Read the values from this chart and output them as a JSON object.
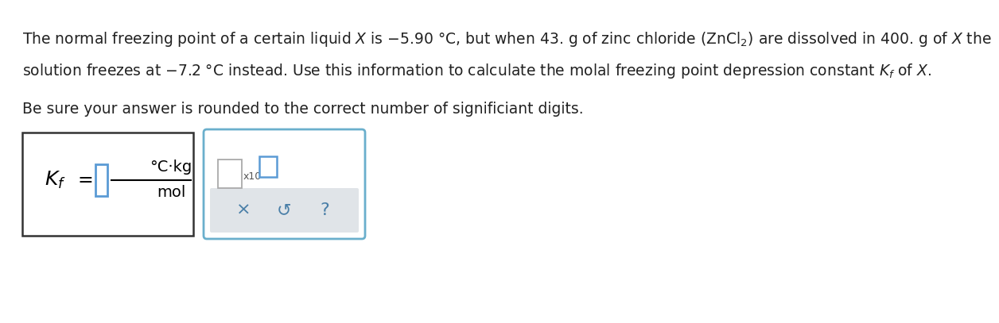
{
  "background_color": "#ffffff",
  "text_line1": "The normal freezing point of a certain liquid $X$ is $-$5.90 °C, but when 43. g of zinc chloride (ZnCl$_2$) are dissolved in 400. g of $X$ the",
  "text_line2": "solution freezes at $-$7.2 °C instead. Use this information to calculate the molal freezing point depression constant $K_f$ of $X$.",
  "text_line3": "Be sure your answer is rounded to the correct number of significiant digits.",
  "fontsize_main": 13.5,
  "fontsize_units": 13,
  "fontsize_kf": 17,
  "input_box_color": "#5b9bd5",
  "box2_border_color": "#6aafcc",
  "bottom_panel_color": "#e0e4e8",
  "symbol_color": "#4a7fa8",
  "text_color": "#222222",
  "box1_edge": "#333333",
  "x10_color": "#555555"
}
